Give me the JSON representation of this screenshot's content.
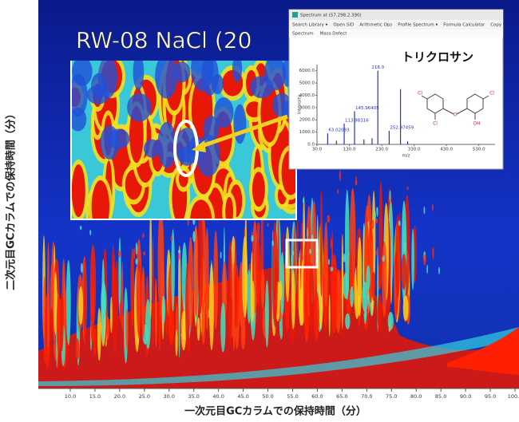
{
  "figure": {
    "x_axis_label": "一次元目GCカラムでの保持時間（分）",
    "y_axis_label": "二次元目GCカラムでの保持時間（分）",
    "xlim": [
      10,
      100
    ],
    "xticks": [
      {
        "value": 10,
        "label": "10.0"
      },
      {
        "value": 15,
        "label": "15.0"
      },
      {
        "value": 20,
        "label": "20.0"
      },
      {
        "value": 25,
        "label": "25.0"
      },
      {
        "value": 30,
        "label": "30.0"
      },
      {
        "value": 35,
        "label": "35.0"
      },
      {
        "value": 40,
        "label": "40.0"
      },
      {
        "value": 45,
        "label": "45.0"
      },
      {
        "value": 50,
        "label": "50.0"
      },
      {
        "value": 55,
        "label": "55.0"
      },
      {
        "value": 60,
        "label": "60.0"
      },
      {
        "value": 65,
        "label": "65.0"
      },
      {
        "value": 70,
        "label": "70.0"
      },
      {
        "value": 75,
        "label": "75.0"
      },
      {
        "value": 80,
        "label": "80.0"
      },
      {
        "value": 85,
        "label": "85.0"
      },
      {
        "value": 90,
        "label": "90.0"
      },
      {
        "value": 95,
        "label": "95.0"
      },
      {
        "value": 100,
        "label": "100.0"
      }
    ]
  },
  "inset": {
    "title": "RW-08 NaCl (20"
  },
  "spectrum_window": {
    "title": "Spectrum at (57.298,2.390)",
    "toolbar": [
      "Search Library ▾",
      "Open SID",
      "Arithmetic Ops",
      "Profile Spectrum ▾",
      "Formula Calculator",
      "Copy t"
    ],
    "tabs": [
      "Spectrum",
      "Mass Defect"
    ],
    "compound": "トリクロサン",
    "molecule_labels": [
      "Cl",
      "Cl",
      "O",
      "Cl",
      "OH"
    ],
    "chart": {
      "type": "bar",
      "x": [
        63.02093,
        113.98316,
        145.96405,
        218.0,
        252.97459,
        287.9,
        90,
        175,
        200,
        310
      ],
      "values": [
        900,
        1700,
        2700,
        6000,
        1100,
        4500,
        300,
        400,
        500,
        250
      ],
      "x_labels": [
        "63.02093",
        "113.98316",
        "145.96405",
        "218.0",
        "252.97459",
        null,
        null,
        null,
        null,
        null
      ],
      "xlim": [
        30,
        580
      ],
      "ylim": [
        0,
        6500
      ],
      "xticks": [
        {
          "value": 30,
          "label": "30.0"
        },
        {
          "value": 130,
          "label": "130.0"
        },
        {
          "value": 230,
          "label": "230.0"
        },
        {
          "value": 330,
          "label": "330.0"
        },
        {
          "value": 430,
          "label": "430.0"
        },
        {
          "value": 530,
          "label": "530.0"
        }
      ],
      "yticks": [
        {
          "value": 0,
          "label": "0.0"
        },
        {
          "value": 1000,
          "label": "1000.0"
        },
        {
          "value": 2000,
          "label": "2000.0"
        },
        {
          "value": 3000,
          "label": "3000.0"
        },
        {
          "value": 4000,
          "label": "4000.0"
        },
        {
          "value": 5000,
          "label": "5000.0"
        },
        {
          "value": 6000,
          "label": "6000.0"
        }
      ],
      "x_label": "m/z",
      "y_label": "Intensity",
      "color": "#2233cc"
    }
  }
}
